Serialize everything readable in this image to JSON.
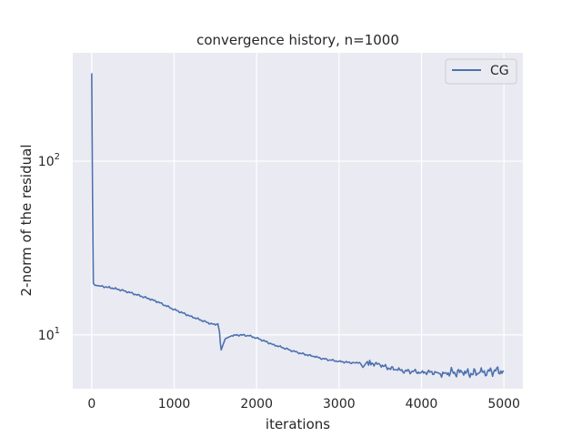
{
  "chart_data": {
    "type": "line",
    "title": "convergence history, n=1000",
    "xlabel": "iterations",
    "ylabel": "2-norm of the residual",
    "xlim": [
      -230,
      5230
    ],
    "ylim": [
      4.9,
      420
    ],
    "yscale": "log",
    "grid": true,
    "legend_position": "top-right",
    "x_ticks": [
      0,
      1000,
      2000,
      3000,
      4000,
      5000
    ],
    "x_tick_labels": [
      "0",
      "1000",
      "2000",
      "3000",
      "4000",
      "5000"
    ],
    "y_ticks": [
      10,
      100
    ],
    "y_tick_labels": [
      {
        "base": "10",
        "exp": "1"
      },
      {
        "base": "10",
        "exp": "2"
      }
    ],
    "series": [
      {
        "name": "CG",
        "color": "#4c72b0",
        "x": [
          0,
          10,
          20,
          40,
          100,
          200,
          300,
          400,
          500,
          600,
          700,
          800,
          900,
          1000,
          1100,
          1200,
          1300,
          1400,
          1500,
          1530,
          1550,
          1560,
          1570,
          1590,
          1620,
          1660,
          1700,
          1800,
          1900,
          2000,
          2100,
          2200,
          2300,
          2400,
          2500,
          2600,
          2700,
          2800,
          2900,
          3000,
          3100,
          3200,
          3260,
          3290,
          3330,
          3400,
          3500,
          3600,
          3700,
          3800,
          3900,
          4000,
          4100,
          4200,
          4230,
          4300,
          4400,
          4500,
          4600,
          4700,
          4800,
          4900,
          5000
        ],
        "values": [
          320,
          60,
          19.8,
          19.3,
          19.1,
          18.8,
          18.4,
          17.9,
          17.3,
          16.7,
          16.1,
          15.5,
          14.7,
          14.0,
          13.4,
          12.8,
          12.3,
          11.8,
          11.4,
          11.6,
          10.4,
          9.0,
          8.2,
          8.7,
          9.5,
          9.7,
          9.9,
          10.0,
          9.9,
          9.6,
          9.2,
          8.8,
          8.5,
          8.2,
          7.9,
          7.7,
          7.5,
          7.3,
          7.15,
          7.05,
          6.95,
          6.9,
          6.85,
          6.5,
          6.9,
          6.9,
          6.7,
          6.45,
          6.3,
          6.2,
          6.15,
          6.1,
          6.1,
          6.05,
          5.95,
          6.05,
          6.1,
          6.05,
          6.0,
          6.05,
          6.15,
          6.2,
          6.2
        ]
      }
    ]
  }
}
